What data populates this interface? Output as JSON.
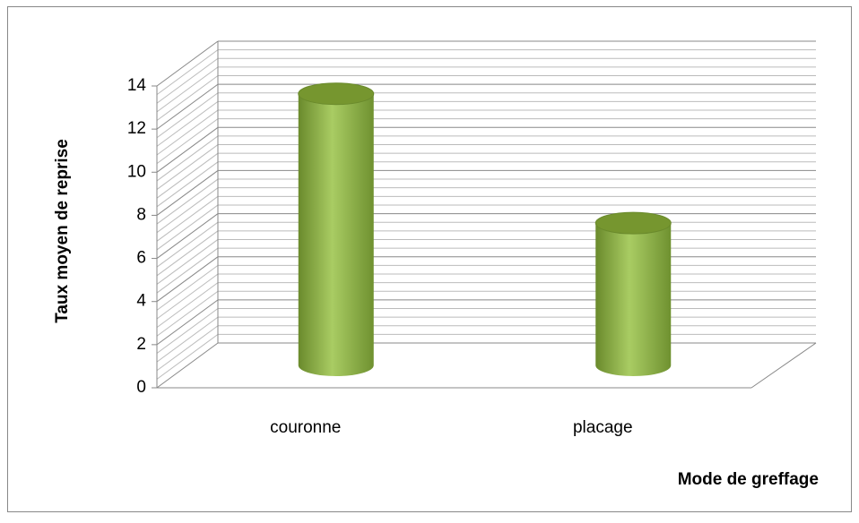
{
  "chart_data": {
    "type": "bar3d",
    "categories": [
      "couronne",
      "placage"
    ],
    "values": [
      12.6,
      6.6
    ],
    "color": "#8fb24a",
    "ylim": [
      0,
      14
    ],
    "yticks": [
      0,
      2,
      4,
      6,
      8,
      10,
      12,
      14
    ],
    "grid": true,
    "y_label": "Taux moyen de reprise",
    "x_label": "Mode de greffage"
  }
}
